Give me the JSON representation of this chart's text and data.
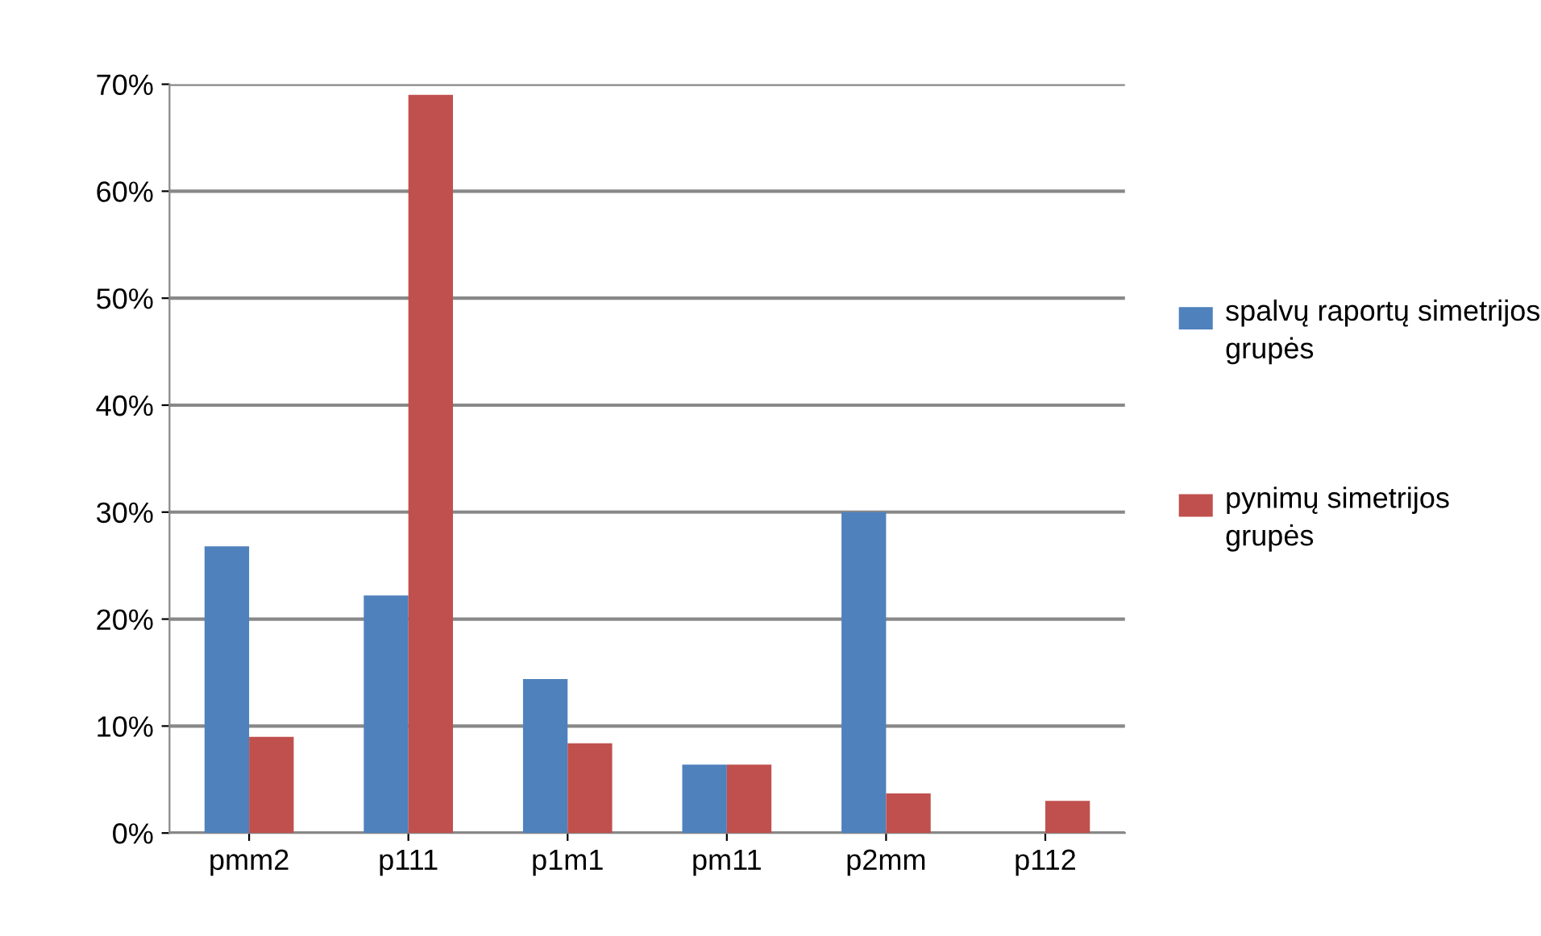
{
  "chart_data": {
    "type": "bar",
    "categories": [
      "pmm2",
      "p111",
      "p1m1",
      "pm11",
      "p2mm",
      "p112"
    ],
    "series": [
      {
        "name": "spalvų raportų simetrijos grupės",
        "color": "#4f81bd",
        "values": [
          26.8,
          22.2,
          14.4,
          6.4,
          30.0,
          0
        ]
      },
      {
        "name": "pynimų simetrijos grupės",
        "color": "#c0504d",
        "values": [
          9.0,
          69.0,
          8.4,
          6.4,
          3.7,
          3.0
        ]
      }
    ],
    "ylim": [
      0,
      70
    ],
    "yticks": [
      {
        "value": 0,
        "label": "0%"
      },
      {
        "value": 10,
        "label": "10%"
      },
      {
        "value": 20,
        "label": "20%"
      },
      {
        "value": 30,
        "label": "30%"
      },
      {
        "value": 40,
        "label": "40%"
      },
      {
        "value": 50,
        "label": "50%"
      },
      {
        "value": 60,
        "label": "60%"
      },
      {
        "value": 70,
        "label": "70%"
      }
    ],
    "grid": "y",
    "legend": "right"
  }
}
